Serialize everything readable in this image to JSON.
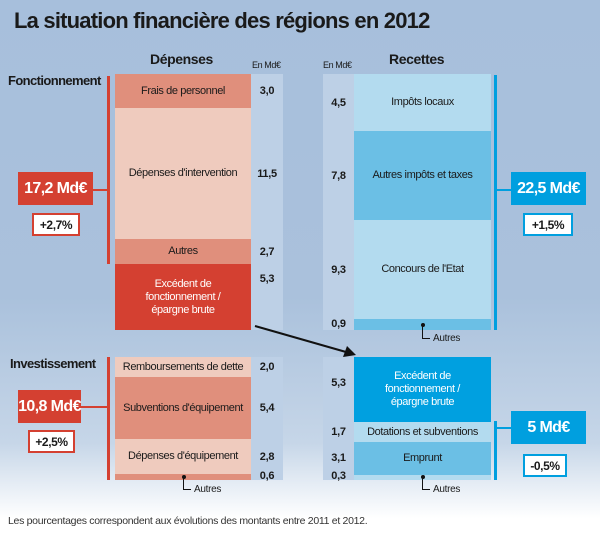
{
  "title": "La situation financière des régions en 2012",
  "unit": "En Md€",
  "depenses": {
    "header": "Dépenses"
  },
  "recettes": {
    "header": "Recettes"
  },
  "fonctionnement": {
    "label": "Fonctionnement",
    "depenses_total": "17,2 Md€",
    "depenses_change": "+2,7%",
    "recettes_total": "22,5 Md€",
    "recettes_change": "+1,5%",
    "depenses_items": [
      {
        "label": "Frais de personnel",
        "value": "3,0"
      },
      {
        "label": "Dépenses d'intervention",
        "value": "11,5"
      },
      {
        "label": "Autres",
        "value": "2,7"
      },
      {
        "label": "Excédent de fonctionnement / épargne brute",
        "value": "5,3"
      }
    ],
    "recettes_items": [
      {
        "label": "Impôts locaux",
        "value": "4,5"
      },
      {
        "label": "Autres impôts et taxes",
        "value": "7,8"
      },
      {
        "label": "Concours de l'Etat",
        "value": "9,3"
      },
      {
        "label": "Autres",
        "value": "0,9"
      }
    ]
  },
  "investissement": {
    "label": "Investissement",
    "depenses_total": "10,8 Md€",
    "depenses_change": "+2,5%",
    "recettes_total": "5 Md€",
    "recettes_change": "-0,5%",
    "depenses_items": [
      {
        "label": "Remboursements de dette",
        "value": "2,0"
      },
      {
        "label": "Subventions d'équipement",
        "value": "5,4"
      },
      {
        "label": "Dépenses d'équipement",
        "value": "2,8"
      },
      {
        "label": "Autres",
        "value": "0,6"
      }
    ],
    "recettes_items": [
      {
        "label": "Excédent de fonctionnement / épargne brute",
        "value": "5,3"
      },
      {
        "label": "Dotations et subventions",
        "value": "1,7"
      },
      {
        "label": "Emprunt",
        "value": "3,1"
      },
      {
        "label": "Autres",
        "value": "0,3"
      }
    ]
  },
  "footnote": "Les pourcentages correspondent aux évolutions des montants entre 2011 et 2012.",
  "colors": {
    "red": "#d44031",
    "salmon": "#e08f7c",
    "pink": "#efcbbe",
    "blue": "#009fdf",
    "midblue": "#6bbfe5",
    "lightblue": "#b3dbef"
  }
}
